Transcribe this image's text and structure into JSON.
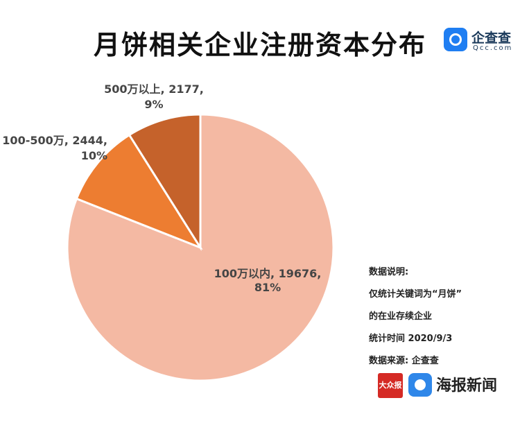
{
  "title": "月饼相关企业注册资本分布",
  "brand": {
    "qcc_name": "企查查",
    "qcc_domain": "Qcc.com",
    "qcc_color": "#1f7ef2",
    "dazhong_name": "大众报业",
    "haibao_name": "海报新闻",
    "haibao_color": "#2f87e9"
  },
  "notes": {
    "heading": "数据说明:",
    "line1": "仅统计关键词为“月饼”",
    "line2": "的在业存续企业",
    "line3": "统计时间 2020/9/3",
    "source": "数据来源:  企查查"
  },
  "chart_data": {
    "type": "pie",
    "title": "月饼相关企业注册资本分布",
    "categories": [
      "100万以内",
      "100-500万",
      "500万以上"
    ],
    "values": [
      19676,
      2444,
      2177
    ],
    "percent_labels": [
      "81%",
      "10%",
      "9%"
    ],
    "colors": [
      "#f4b9a3",
      "#ed7d31",
      "#c5622b"
    ],
    "start_angle_deg": 0,
    "direction": "clockwise",
    "legend": "none",
    "data_labels": [
      {
        "line1": "100万以内, 19676,",
        "line2": "81%"
      },
      {
        "line1": "100-500万, 2444,",
        "line2": "10%"
      },
      {
        "line1": "500万以上, 2177,",
        "line2": "9%"
      }
    ]
  }
}
